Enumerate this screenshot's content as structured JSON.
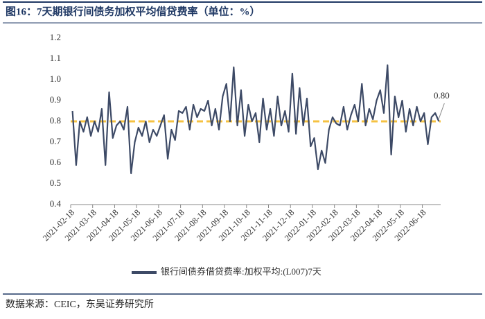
{
  "chart_data": {
    "type": "line",
    "title": "图16：7天期银行间债务加权平均借贷费率（单位：%）",
    "source": "数据来源：CEIC，东吴证券研究所",
    "categories": [
      "2021-02-18",
      null,
      null,
      null,
      null,
      null,
      "2021-03-18",
      null,
      null,
      null,
      null,
      null,
      "2021-04-18",
      null,
      null,
      null,
      null,
      null,
      "2021-05-18",
      null,
      null,
      null,
      null,
      null,
      "2021-06-18",
      null,
      null,
      null,
      null,
      null,
      "2021-07-18",
      null,
      null,
      null,
      null,
      null,
      "2021-08-18",
      null,
      null,
      null,
      null,
      null,
      "2021-09-18",
      null,
      null,
      null,
      null,
      null,
      "2021-10-18",
      null,
      null,
      null,
      null,
      null,
      "2021-11-18",
      null,
      null,
      null,
      null,
      null,
      "2021-12-18",
      null,
      null,
      null,
      null,
      null,
      "2022-01-18",
      null,
      null,
      null,
      null,
      null,
      "2022-02-18",
      null,
      null,
      null,
      null,
      null,
      "2022-03-18",
      null,
      null,
      null,
      null,
      null,
      "2022-04-18",
      null,
      null,
      null,
      null,
      null,
      "2022-05-18",
      null,
      null,
      null,
      null,
      null,
      "2022-06-18",
      null,
      null,
      null,
      null
    ],
    "series": [
      {
        "name": "银行间债券借贷费率:加权平均:(L007)7天",
        "color": "#3d4a66",
        "values": [
          0.85,
          0.59,
          0.8,
          0.75,
          0.82,
          0.73,
          0.8,
          0.75,
          0.86,
          0.59,
          0.94,
          0.72,
          0.78,
          0.8,
          0.76,
          0.87,
          0.55,
          0.7,
          0.77,
          0.73,
          0.8,
          0.7,
          0.76,
          0.73,
          0.78,
          0.83,
          0.62,
          0.76,
          0.71,
          0.85,
          0.84,
          0.87,
          0.76,
          0.88,
          0.82,
          0.86,
          0.85,
          0.9,
          0.78,
          0.86,
          0.76,
          0.92,
          0.98,
          0.8,
          1.06,
          0.78,
          0.95,
          0.73,
          0.88,
          0.8,
          0.84,
          0.7,
          0.91,
          0.76,
          0.86,
          0.73,
          0.92,
          0.78,
          0.85,
          0.75,
          1.03,
          0.74,
          0.96,
          0.78,
          0.91,
          0.68,
          0.72,
          0.57,
          0.66,
          0.6,
          0.76,
          0.82,
          0.79,
          0.78,
          0.87,
          0.76,
          0.83,
          0.88,
          0.8,
          0.98,
          0.78,
          0.86,
          0.81,
          0.9,
          0.95,
          0.84,
          1.07,
          0.64,
          0.92,
          0.82,
          0.9,
          0.75,
          0.86,
          0.78,
          0.87,
          0.8,
          0.84,
          0.69,
          0.82,
          0.84,
          0.8
        ]
      }
    ],
    "reference_line": {
      "value": 0.8,
      "label": "0.80",
      "color": "#f5c242"
    },
    "ylim": [
      0.4,
      1.2
    ],
    "yticks": [
      0.4,
      0.5,
      0.6,
      0.7,
      0.8,
      0.9,
      {
        "value": 1,
        "label": "1.0"
      },
      1.1,
      1.2
    ],
    "grid": false,
    "legend": "bottom"
  }
}
